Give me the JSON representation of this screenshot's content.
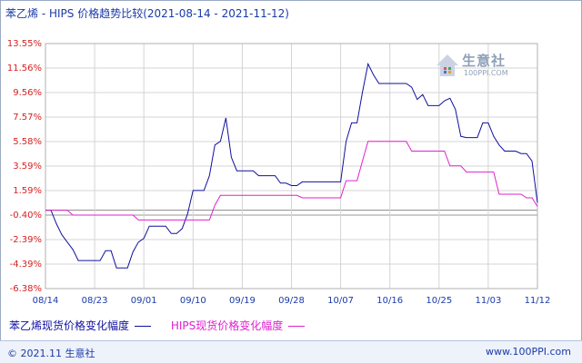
{
  "title": "苯乙烯 - HIPS 价格趋势比较(2021-08-14 - 2021-11-12)",
  "watermark": {
    "text": "生意社",
    "sub": "100PPI.COM"
  },
  "footer": {
    "left": "© 2021.11 生意社",
    "right": "www.100PPI.com"
  },
  "colors": {
    "series1": "#1010a0",
    "series2": "#e020d0",
    "axis_text_y": "#d62020",
    "axis_text_x": "#1a3aa8"
  },
  "chart_data": {
    "type": "line",
    "x_ticks": [
      "08/14",
      "08/23",
      "09/01",
      "09/10",
      "09/19",
      "09/28",
      "10/07",
      "10/16",
      "10/25",
      "11/03",
      "11/12"
    ],
    "y_ticks": [
      "13.55%",
      "11.56%",
      "9.56%",
      "7.57%",
      "5.58%",
      "3.59%",
      "1.59%",
      "-0.40%",
      "-2.39%",
      "-4.39%",
      "-6.38%"
    ],
    "ylim": [
      -6.38,
      13.55
    ],
    "xlim": [
      0,
      90
    ],
    "grid": true,
    "legend_position": "bottom",
    "series": [
      {
        "name": "苯乙烯现货价格变化幅度",
        "color": "#1010a0",
        "x": [
          0,
          1,
          2,
          3,
          4,
          5,
          6,
          7,
          8,
          9,
          10,
          11,
          12,
          13,
          14,
          15,
          16,
          17,
          18,
          19,
          20,
          21,
          22,
          23,
          24,
          25,
          26,
          27,
          28,
          29,
          30,
          31,
          32,
          33,
          34,
          35,
          36,
          37,
          38,
          39,
          40,
          41,
          42,
          43,
          44,
          45,
          46,
          47,
          48,
          49,
          50,
          51,
          52,
          53,
          54,
          55,
          56,
          57,
          58,
          59,
          60,
          61,
          62,
          63,
          64,
          65,
          66,
          67,
          68,
          69,
          70,
          71,
          72,
          73,
          74,
          75,
          76,
          77,
          78,
          79,
          80,
          81,
          82,
          83,
          84,
          85,
          86,
          87,
          88,
          89,
          90
        ],
        "values": [
          0.0,
          0.0,
          -1.1,
          -2.0,
          -2.6,
          -3.2,
          -4.1,
          -4.1,
          -4.1,
          -4.1,
          -4.1,
          -3.3,
          -3.3,
          -4.7,
          -4.7,
          -4.7,
          -3.4,
          -2.6,
          -2.3,
          -1.3,
          -1.3,
          -1.3,
          -1.3,
          -1.9,
          -1.9,
          -1.5,
          -0.3,
          1.6,
          1.6,
          1.6,
          2.8,
          5.3,
          5.6,
          7.5,
          4.3,
          3.2,
          3.2,
          3.2,
          3.2,
          2.8,
          2.8,
          2.8,
          2.8,
          2.2,
          2.2,
          2.0,
          2.0,
          2.3,
          2.3,
          2.3,
          2.3,
          2.3,
          2.3,
          2.3,
          2.3,
          5.6,
          7.1,
          7.1,
          9.6,
          11.9,
          11.0,
          10.3,
          10.3,
          10.3,
          10.3,
          10.3,
          10.3,
          10.0,
          9.0,
          9.4,
          8.5,
          8.5,
          8.5,
          8.9,
          9.1,
          8.2,
          6.0,
          5.9,
          5.9,
          5.9,
          7.1,
          7.1,
          6.0,
          5.3,
          4.8,
          4.8,
          4.8,
          4.6,
          4.6,
          4.0,
          0.6
        ]
      },
      {
        "name": "HIPS现货价格变化幅度",
        "color": "#e020d0",
        "x": [
          0,
          1,
          2,
          3,
          4,
          5,
          6,
          7,
          8,
          9,
          10,
          11,
          12,
          13,
          14,
          15,
          16,
          17,
          18,
          19,
          20,
          21,
          22,
          23,
          24,
          25,
          26,
          27,
          28,
          29,
          30,
          31,
          32,
          33,
          34,
          35,
          36,
          37,
          38,
          39,
          40,
          41,
          42,
          43,
          44,
          45,
          46,
          47,
          48,
          49,
          50,
          51,
          52,
          53,
          54,
          55,
          56,
          57,
          58,
          59,
          60,
          61,
          62,
          63,
          64,
          65,
          66,
          67,
          68,
          69,
          70,
          71,
          72,
          73,
          74,
          75,
          76,
          77,
          78,
          79,
          80,
          81,
          82,
          83,
          84,
          85,
          86,
          87,
          88,
          89,
          90
        ],
        "values": [
          0.0,
          0.0,
          0.0,
          0.0,
          0.0,
          -0.4,
          -0.4,
          -0.4,
          -0.4,
          -0.4,
          -0.4,
          -0.4,
          -0.4,
          -0.4,
          -0.4,
          -0.4,
          -0.4,
          -0.8,
          -0.8,
          -0.8,
          -0.8,
          -0.8,
          -0.8,
          -0.8,
          -0.8,
          -0.8,
          -0.8,
          -0.8,
          -0.8,
          -0.8,
          -0.8,
          0.4,
          1.2,
          1.2,
          1.2,
          1.2,
          1.2,
          1.2,
          1.2,
          1.2,
          1.2,
          1.2,
          1.2,
          1.2,
          1.2,
          1.2,
          1.2,
          1.0,
          1.0,
          1.0,
          1.0,
          1.0,
          1.0,
          1.0,
          1.0,
          2.4,
          2.4,
          2.4,
          4.0,
          5.6,
          5.6,
          5.6,
          5.6,
          5.6,
          5.6,
          5.6,
          5.6,
          4.8,
          4.8,
          4.8,
          4.8,
          4.8,
          4.8,
          4.8,
          3.6,
          3.6,
          3.6,
          3.1,
          3.1,
          3.1,
          3.1,
          3.1,
          3.1,
          1.3,
          1.3,
          1.3,
          1.3,
          1.3,
          1.0,
          1.0,
          0.3
        ]
      }
    ]
  }
}
